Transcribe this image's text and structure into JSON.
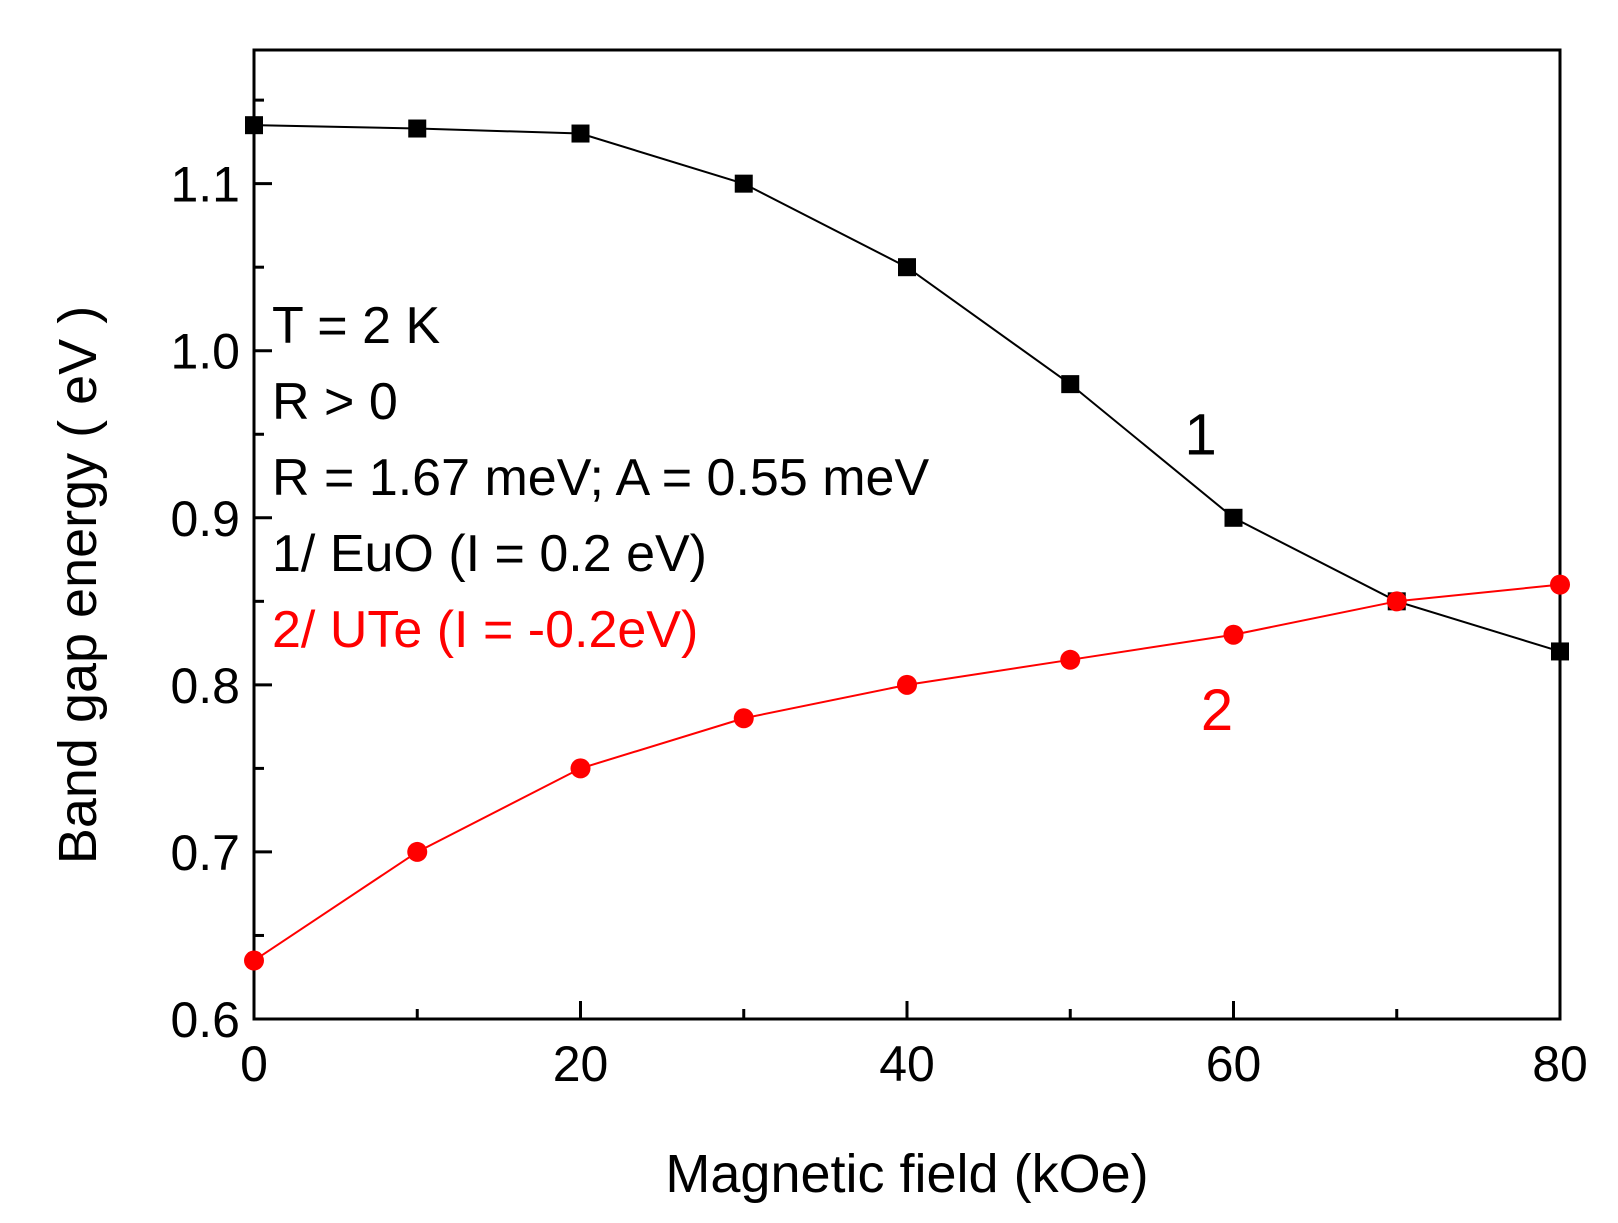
{
  "chart_data": {
    "type": "line",
    "title": "",
    "xlabel": "Magnetic field (kOe)",
    "ylabel": "Band gap energy ( eV )",
    "xlim": [
      0,
      80
    ],
    "ylim": [
      0.6,
      1.18
    ],
    "xticks": [
      0,
      20,
      40,
      60,
      80
    ],
    "xticks_minor": [
      10,
      30,
      50,
      70
    ],
    "yticks": [
      0.6,
      0.7,
      0.8,
      0.9,
      1.0,
      1.1
    ],
    "yticks_minor": [
      0.65,
      0.75,
      0.85,
      0.95,
      1.05,
      1.15
    ],
    "ytick_labels": [
      "0.6",
      "0.7",
      "0.8",
      "0.9",
      "1.0",
      "1.1"
    ],
    "xtick_labels": [
      "0",
      "20",
      "40",
      "60",
      "80"
    ],
    "grid": false,
    "series": [
      {
        "name": "1",
        "label": "1",
        "color": "#000000",
        "marker": "square",
        "x": [
          0,
          10,
          20,
          30,
          40,
          50,
          60,
          70,
          80
        ],
        "y": [
          1.135,
          1.133,
          1.13,
          1.1,
          1.05,
          0.98,
          0.9,
          0.85,
          0.82
        ],
        "label_at": [
          57,
          0.95
        ]
      },
      {
        "name": "2",
        "label": "2",
        "color": "#ff0000",
        "marker": "circle",
        "x": [
          0,
          10,
          20,
          30,
          40,
          50,
          60,
          70,
          80
        ],
        "y": [
          0.635,
          0.7,
          0.75,
          0.78,
          0.8,
          0.815,
          0.83,
          0.85,
          0.86
        ],
        "label_at": [
          58,
          0.785
        ]
      }
    ],
    "annotations": [
      {
        "text": "T = 2 K",
        "color": "#000000"
      },
      {
        "text": "R > 0",
        "color": "#000000"
      },
      {
        "text": "R = 1.67 meV; A = 0.55 meV",
        "color": "#000000"
      },
      {
        "text": "1/ EuO (I = 0.2 eV)",
        "color": "#000000"
      },
      {
        "text": "2/ UTe (I = -0.2eV)",
        "color": "#ff0000"
      }
    ]
  }
}
